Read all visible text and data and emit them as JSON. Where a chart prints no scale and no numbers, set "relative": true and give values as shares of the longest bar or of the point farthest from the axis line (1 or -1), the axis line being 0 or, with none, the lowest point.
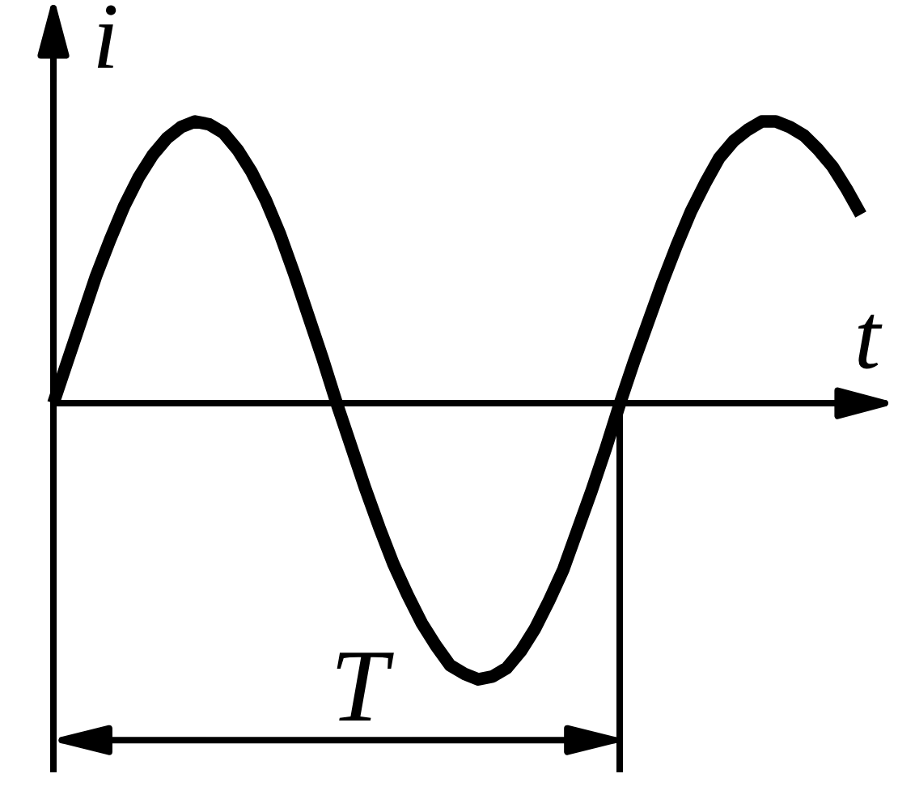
{
  "chart_data": {
    "type": "line",
    "relative": true,
    "xlabel": "t",
    "ylabel": "i",
    "categories": [
      null,
      null,
      null,
      null,
      null,
      null,
      null,
      null,
      null,
      null,
      null,
      null,
      null,
      null,
      null,
      null,
      null,
      null,
      null,
      null,
      null,
      null,
      null,
      null,
      null,
      null,
      null,
      null,
      null,
      null,
      null,
      null,
      null,
      null,
      null,
      null,
      null,
      null,
      null,
      null,
      null,
      null,
      null,
      null,
      null,
      null,
      null,
      null,
      null,
      null,
      null,
      null,
      null,
      null,
      null,
      null,
      null,
      null
    ],
    "series": [
      {
        "color": "#000000",
        "values": [
          0,
          0.15,
          0.3,
          0.45,
          0.58,
          0.7,
          0.8,
          0.88,
          0.94,
          0.98,
          1,
          0.99,
          0.96,
          0.9,
          0.82,
          0.72,
          0.6,
          0.46,
          0.31,
          0.16,
          0,
          -0.15,
          -0.3,
          -0.44,
          -0.57,
          -0.68,
          -0.78,
          -0.86,
          -0.93,
          -0.96,
          -0.98,
          -0.97,
          -0.94,
          -0.88,
          -0.8,
          -0.7,
          -0.59,
          -0.45,
          -0.31,
          -0.16,
          0,
          0.15,
          0.29,
          0.43,
          0.56,
          0.68,
          0.78,
          0.87,
          0.93,
          0.97,
          1,
          1,
          0.98,
          0.95,
          0.9,
          0.84,
          0.76,
          0.67
        ]
      }
    ],
    "annotations": [
      "T"
    ],
    "marker": "none",
    "line_style": "solid"
  }
}
